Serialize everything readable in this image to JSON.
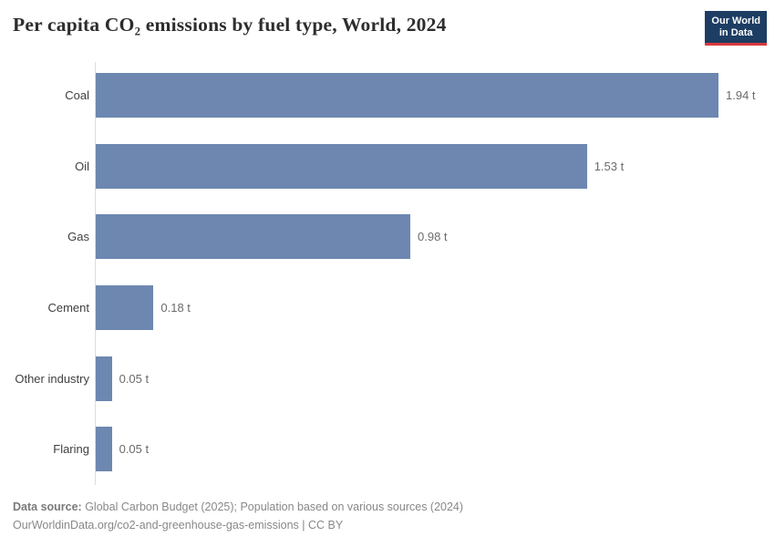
{
  "header": {
    "title": "Per capita CO₂ emissions by fuel type, World, 2024",
    "logo": {
      "line1": "Our World",
      "line2": "in Data"
    }
  },
  "chart_data": {
    "type": "bar",
    "orientation": "horizontal",
    "title": "Per capita CO₂ emissions by fuel type, World, 2024",
    "categories": [
      "Coal",
      "Oil",
      "Gas",
      "Cement",
      "Other industry",
      "Flaring"
    ],
    "values": [
      1.94,
      1.53,
      0.98,
      0.18,
      0.05,
      0.05
    ],
    "value_labels": [
      "1.94 t",
      "1.53 t",
      "0.98 t",
      "0.18 t",
      "0.05 t",
      "0.05 t"
    ],
    "unit": "t",
    "xlabel": "",
    "ylabel": "",
    "xlim": [
      0,
      1.94
    ],
    "grid": false,
    "legend": "none",
    "bar_color": "#6d87b0",
    "axis_line_color": "#dcdcdc"
  },
  "footer": {
    "data_source_label": "Data source:",
    "data_source_text": " Global Carbon Budget (2025); Population based on various sources (2024)",
    "url_line": "OurWorldinData.org/co2-and-greenhouse-gas-emissions | CC BY"
  },
  "colors": {
    "brand_navy": "#1d3d63",
    "brand_red": "#d93a3d",
    "bar_blue": "#6d87b0",
    "title_text": "#2d2d2d",
    "footer_text": "#888888"
  }
}
